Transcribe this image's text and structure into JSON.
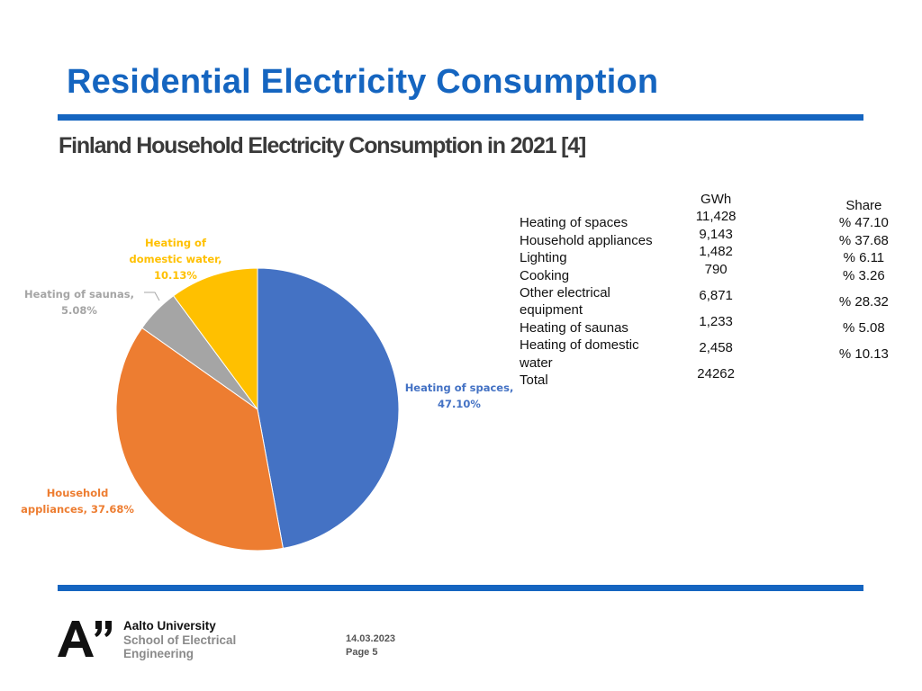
{
  "header": {
    "title": "Residential Electricity Consumption",
    "subtitle": "Finland Household Electricity Consumption in 2021 [4]"
  },
  "colors": {
    "accent": "#1565c0",
    "rule": "#1565c0",
    "heating_spaces": "#4472c4",
    "household_appliances": "#ed7d31",
    "heating_saunas": "#a5a5a5",
    "heating_domestic_water": "#ffc000",
    "logo_black": "#111111",
    "logo_gray": "#8a8a8a"
  },
  "chart_data": {
    "type": "pie",
    "title": "Finland Household Electricity Consumption in 2021",
    "slices": [
      {
        "label": "Heating of spaces",
        "value": 47.1,
        "display": [
          "Heating of spaces,",
          "47.10%"
        ],
        "color": "#4472c4"
      },
      {
        "label": "Household appliances",
        "value": 37.68,
        "display": [
          "Household",
          "appliances, 37.68%"
        ],
        "color": "#ed7d31"
      },
      {
        "label": "Heating of saunas",
        "value": 5.08,
        "display": [
          "Heating of saunas,",
          "5.08%"
        ],
        "color": "#a5a5a5"
      },
      {
        "label": "Heating of domestic water",
        "value": 10.13,
        "display": [
          "Heating of",
          "domestic water,",
          "10.13%"
        ],
        "color": "#ffc000"
      }
    ]
  },
  "table": {
    "headers": {
      "name": "",
      "gwh": "GWh",
      "share": "Share"
    },
    "rows": [
      {
        "name": "Heating of spaces",
        "gwh": "11,428",
        "share": "% 47.10"
      },
      {
        "name": "Household appliances",
        "gwh": "9,143",
        "share": "% 37.68"
      },
      {
        "name": "Lighting",
        "gwh": "1,482",
        "share": "% 6.11"
      },
      {
        "name": "Cooking",
        "gwh": "790",
        "share": "% 3.26"
      },
      {
        "name": "Other electrical equipment",
        "gwh": "6,871",
        "share": "% 28.32"
      },
      {
        "name": "Heating of saunas",
        "gwh": "1,233",
        "share": "% 5.08"
      },
      {
        "name": "Heating of domestic water",
        "gwh": "2,458",
        "share": "% 10.13"
      },
      {
        "name": "Total",
        "gwh": "24262",
        "share": ""
      }
    ]
  },
  "footer": {
    "logo_line1": "Aalto University",
    "logo_line2": "School of Electrical",
    "logo_line3": "Engineering",
    "date": "14.03.2023",
    "page": "Page 5"
  }
}
